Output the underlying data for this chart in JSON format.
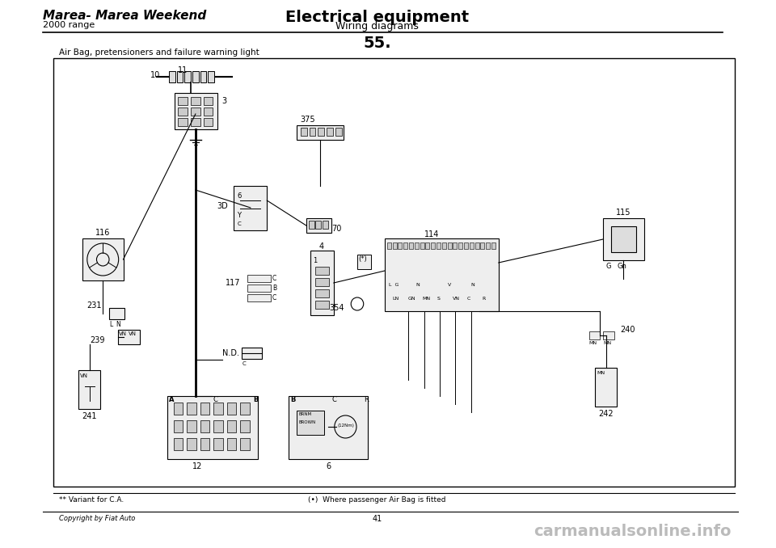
{
  "title_left": "Marea- Marea Weekend",
  "title_right": "Electrical equipment",
  "subtitle_left": "2000 range",
  "subtitle_right": "Wiring diagrams",
  "page_number": "55.",
  "diagram_title": "Air Bag, pretensioners and failure warning light",
  "footnote_left": "** Variant for C.A.",
  "footnote_center": "(•)  Where passenger Air Bag is fitted",
  "copyright": "Copyright by Fiat Auto",
  "page_num_bottom": "41",
  "watermark": "carmanualsonline.info",
  "bg_color": "#ffffff",
  "border_color": "#000000",
  "text_color": "#000000",
  "component_labels": [
    "11",
    "10",
    "3",
    "375",
    "3D",
    "70",
    "4",
    "114",
    "115",
    "116",
    "117",
    "231",
    "239",
    "241",
    "240",
    "242",
    "354",
    "12",
    "6",
    "N.D."
  ],
  "diagram_bg": "#f8f8f8"
}
